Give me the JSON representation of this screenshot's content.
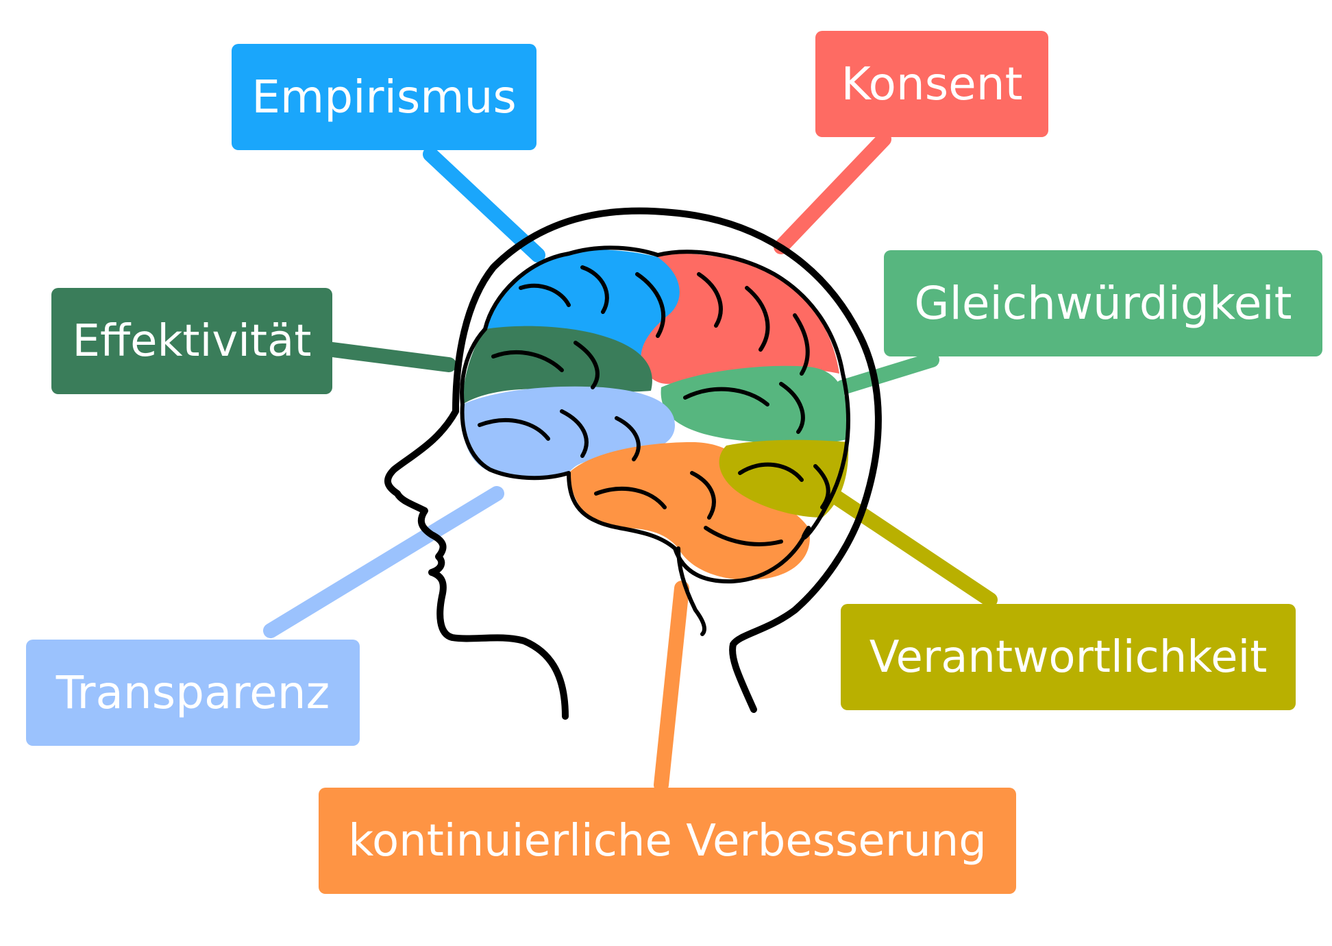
{
  "labels": {
    "empirismus": {
      "text": "Empirismus",
      "color": "#1aa6fb"
    },
    "konsent": {
      "text": "Konsent",
      "color": "#fe6b63"
    },
    "gleichwuerdigkeit": {
      "text": "Gleichwürdigkeit",
      "color": "#57b67f"
    },
    "effektivitaet": {
      "text": "Effektivität",
      "color": "#3a7d5a"
    },
    "transparenz": {
      "text": "Transparenz",
      "color": "#9bc2fd"
    },
    "verantwortlichkeit": {
      "text": "Verantwortlichkeit",
      "color": "#b9b000"
    },
    "kontinuierliche_verbesserung": {
      "text": "kontinuierliche Verbesserung",
      "color": "#fe9444"
    }
  },
  "brain_regions": [
    {
      "name": "frontal-blue",
      "color": "#1aa6fb"
    },
    {
      "name": "parietal-red",
      "color": "#fe6b63"
    },
    {
      "name": "dark-green",
      "color": "#3a7d5a"
    },
    {
      "name": "mid-green",
      "color": "#57b67f"
    },
    {
      "name": "light-blue",
      "color": "#9bc2fd"
    },
    {
      "name": "orange",
      "color": "#fe9444"
    },
    {
      "name": "olive",
      "color": "#b9b000"
    }
  ],
  "outline_color": "#000000"
}
